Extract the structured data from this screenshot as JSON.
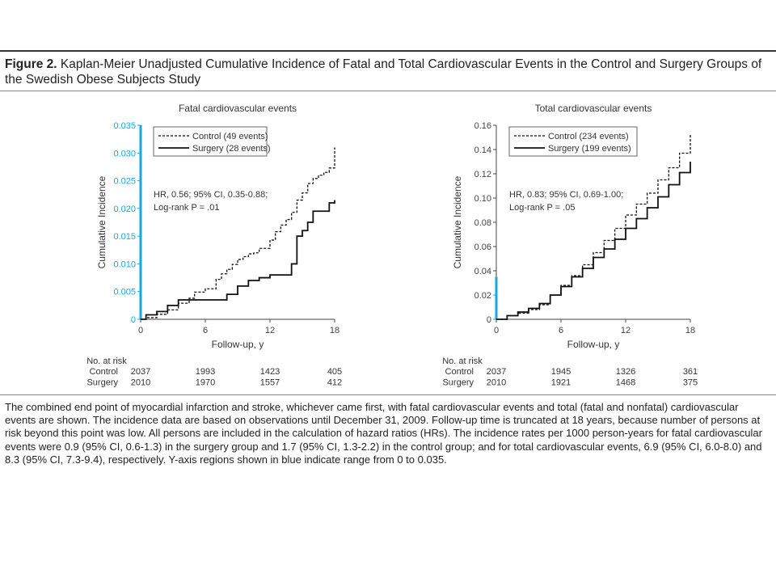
{
  "figure": {
    "label": "Figure 2.",
    "title": "Kaplan-Meier Unadjusted Cumulative Incidence of Fatal and Total Cardiovascular Events in the Control and Surgery Groups of the Swedish Obese Subjects Study",
    "caption": "The combined end point of myocardial infarction and stroke, whichever came first, with fatal cardiovascular events and total (fatal and nonfatal) cardiovascular events are shown. The incidence data are based on observations until December 31, 2009. Follow-up time is truncated at 18 years, because number of persons at risk beyond this point was low. All persons are included in the calculation of hazard ratios (HRs). The incidence rates per 1000 person-years for fatal cardiovascular events were 0.9 (95% CI, 0.6-1.3) in the surgery group and 1.7 (95% CI, 1.3-2.2) in the control group; and for total cardiovascular events, 6.9 (95% CI, 6.0-8.0) and 8.3 (95% CI, 7.3-9.4), respectively. Y-axis regions shown in blue indicate range from 0 to 0.035."
  },
  "colors": {
    "highlight": "#1aa7e0",
    "line": "#111111",
    "axis": "#444444"
  },
  "chart_data": [
    {
      "type": "line",
      "title": "Fatal cardiovascular events",
      "xlabel": "Follow-up, y",
      "ylabel": "Cumulative Incidence",
      "xlim": [
        0,
        18
      ],
      "ylim": [
        0,
        0.035
      ],
      "xticks": [
        0,
        6,
        12,
        18
      ],
      "yticks": [
        0,
        0.005,
        0.01,
        0.015,
        0.02,
        0.025,
        0.03,
        0.035
      ],
      "ytick_labels": [
        "0",
        "0.005",
        "0.010",
        "0.015",
        "0.020",
        "0.025",
        "0.030",
        "0.035"
      ],
      "highlight_range": [
        0,
        0.035
      ],
      "annotation": [
        "HR, 0.56; 95% CI, 0.35-0.88;",
        "Log-rank P = .01"
      ],
      "legend_position": "top-left",
      "series": [
        {
          "name": "Control (49 events)",
          "style": "dashed",
          "x": [
            0,
            0.5,
            1.5,
            2.5,
            3.5,
            4.5,
            5.0,
            6.0,
            7.0,
            7.5,
            8.0,
            8.5,
            9.0,
            9.5,
            10.0,
            10.5,
            11.0,
            12.0,
            12.5,
            13.0,
            13.5,
            14.0,
            14.5,
            15.0,
            15.5,
            16.0,
            16.5,
            17.0,
            17.5,
            18.0,
            18.0
          ],
          "y": [
            0,
            0.0003,
            0.0009,
            0.0017,
            0.0029,
            0.0038,
            0.0049,
            0.0055,
            0.0072,
            0.0082,
            0.009,
            0.0099,
            0.0108,
            0.0113,
            0.0118,
            0.012,
            0.0128,
            0.0143,
            0.0158,
            0.017,
            0.018,
            0.0193,
            0.0215,
            0.0228,
            0.0245,
            0.0254,
            0.026,
            0.0265,
            0.0273,
            0.0285,
            0.031
          ]
        },
        {
          "name": "Surgery (28 events)",
          "style": "solid",
          "x": [
            0,
            0.5,
            1.5,
            2.5,
            3.5,
            4.5,
            6.0,
            7.0,
            8.0,
            9.0,
            10.0,
            11.0,
            12.0,
            13.0,
            14.0,
            14.5,
            15.0,
            15.5,
            16.0,
            16.5,
            17.5,
            18.0
          ],
          "y": [
            0,
            0.0008,
            0.0014,
            0.0025,
            0.0035,
            0.0035,
            0.0035,
            0.0035,
            0.0045,
            0.006,
            0.007,
            0.0075,
            0.008,
            0.008,
            0.01,
            0.015,
            0.016,
            0.0175,
            0.0195,
            0.0195,
            0.021,
            0.0215
          ]
        }
      ],
      "risk_table": {
        "header": "No. at risk",
        "rows": [
          {
            "group": "Control",
            "values": [
              "2037",
              "1993",
              "1423",
              "405"
            ]
          },
          {
            "group": "Surgery",
            "values": [
              "2010",
              "1970",
              "1557",
              "412"
            ]
          }
        ]
      }
    },
    {
      "type": "line",
      "title": "Total cardiovascular events",
      "xlabel": "Follow-up, y",
      "ylabel": "Cumulative Incidence",
      "xlim": [
        0,
        18
      ],
      "ylim": [
        0,
        0.16
      ],
      "xticks": [
        0,
        6,
        12,
        18
      ],
      "yticks": [
        0,
        0.02,
        0.04,
        0.06,
        0.08,
        0.1,
        0.12,
        0.14,
        0.16
      ],
      "ytick_labels": [
        "0",
        "0.02",
        "0.04",
        "0.06",
        "0.08",
        "0.10",
        "0.12",
        "0.14",
        "0.16"
      ],
      "highlight_range": [
        0,
        0.035
      ],
      "annotation": [
        "HR, 0.83; 95% CI, 0.69-1.00;",
        "Log-rank P = .05"
      ],
      "legend_position": "top-left",
      "series": [
        {
          "name": "Control (234 events)",
          "style": "dashed",
          "x": [
            0,
            1,
            2,
            3,
            4,
            5,
            6,
            7,
            8,
            9,
            10,
            11,
            12,
            13,
            14,
            15,
            16,
            17,
            18
          ],
          "y": [
            0,
            0.003,
            0.005,
            0.008,
            0.012,
            0.02,
            0.028,
            0.036,
            0.045,
            0.055,
            0.065,
            0.075,
            0.086,
            0.095,
            0.104,
            0.115,
            0.125,
            0.137,
            0.153
          ]
        },
        {
          "name": "Surgery (199 events)",
          "style": "solid",
          "x": [
            0,
            1,
            2,
            3,
            4,
            5,
            6,
            7,
            8,
            9,
            10,
            11,
            12,
            13,
            14,
            15,
            16,
            17,
            18
          ],
          "y": [
            0,
            0.003,
            0.006,
            0.009,
            0.013,
            0.02,
            0.027,
            0.035,
            0.042,
            0.051,
            0.058,
            0.066,
            0.075,
            0.083,
            0.092,
            0.101,
            0.111,
            0.121,
            0.13
          ]
        }
      ],
      "risk_table": {
        "header": "No. at risk",
        "rows": [
          {
            "group": "Control",
            "values": [
              "2037",
              "1945",
              "1326",
              "361"
            ]
          },
          {
            "group": "Surgery",
            "values": [
              "2010",
              "1921",
              "1468",
              "375"
            ]
          }
        ]
      }
    }
  ]
}
